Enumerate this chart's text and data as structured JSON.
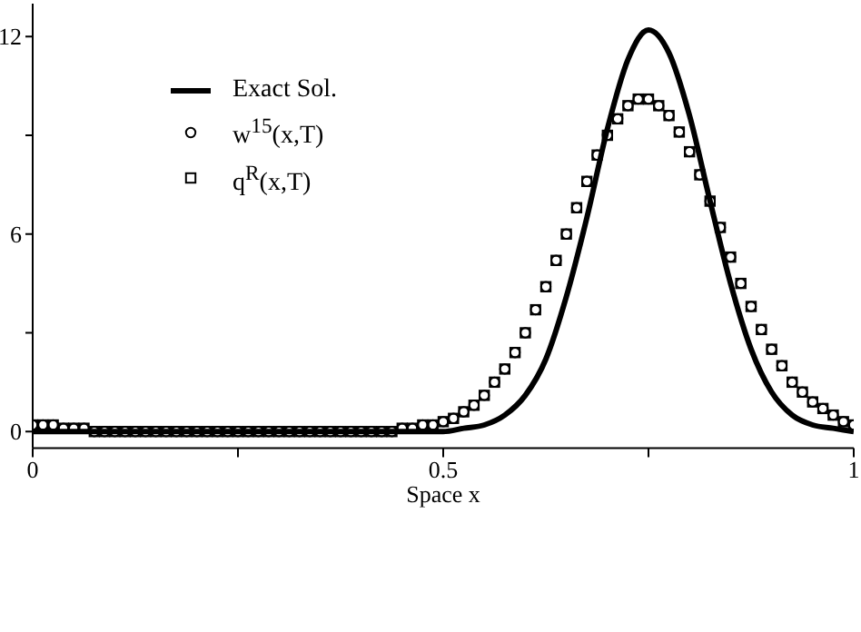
{
  "chart_data": {
    "type": "line",
    "xlabel": "Space x",
    "xlim": [
      0,
      1
    ],
    "xticks": [
      0,
      {
        "value": 0.25,
        "label": null
      },
      0.5,
      {
        "value": 0.75,
        "label": null
      },
      1
    ],
    "ylim": [
      -0.5,
      13
    ],
    "yticks": [
      0,
      {
        "value": 3,
        "label": null
      },
      6,
      {
        "value": 9,
        "label": null
      },
      12
    ],
    "grid": false,
    "legend": "top left",
    "series": [
      {
        "name": "Exact Sol.",
        "color": "#000000",
        "line_style": "solid",
        "marker": "none",
        "x": [
          0,
          0.025,
          0.05,
          0.075,
          0.1,
          0.125,
          0.15,
          0.175,
          0.2,
          0.225,
          0.25,
          0.275,
          0.3,
          0.325,
          0.35,
          0.375,
          0.4,
          0.425,
          0.45,
          0.475,
          0.5,
          0.525,
          0.55,
          0.575,
          0.6,
          0.625,
          0.65,
          0.675,
          0.7,
          0.725,
          0.75,
          0.775,
          0.8,
          0.825,
          0.85,
          0.875,
          0.9,
          0.925,
          0.95,
          0.975,
          1
        ],
        "values": [
          0,
          0,
          0,
          0,
          0,
          0,
          0,
          0,
          0,
          0,
          0,
          0,
          0,
          0,
          0,
          0,
          0,
          0,
          0,
          0,
          0,
          0.1,
          0.2,
          0.5,
          1.1,
          2.2,
          4.1,
          6.5,
          9.2,
          11.3,
          12.2,
          11.5,
          9.6,
          7,
          4.5,
          2.5,
          1.2,
          0.5,
          0.2,
          0.1,
          0
        ]
      },
      {
        "name": "w$^{15}$(x,T)",
        "type": "scatter",
        "color": "#000000",
        "marker": "circle",
        "x": [
          0,
          0.0125,
          0.025,
          0.0375,
          0.05,
          0.0625,
          0.075,
          0.0875,
          0.1,
          0.1125,
          0.125,
          0.1375,
          0.15,
          0.1625,
          0.175,
          0.1875,
          0.2,
          0.2125,
          0.225,
          0.2375,
          0.25,
          0.2625,
          0.275,
          0.2875,
          0.3,
          0.3125,
          0.325,
          0.3375,
          0.35,
          0.3625,
          0.375,
          0.3875,
          0.4,
          0.4125,
          0.425,
          0.4375,
          0.45,
          0.4625,
          0.475,
          0.4875,
          0.5,
          0.5125,
          0.525,
          0.5375,
          0.55,
          0.5625,
          0.575,
          0.5875,
          0.6,
          0.6125,
          0.625,
          0.6375,
          0.65,
          0.6625,
          0.675,
          0.6875,
          0.7,
          0.7125,
          0.725,
          0.7375,
          0.75,
          0.7625,
          0.775,
          0.7875,
          0.8,
          0.8125,
          0.825,
          0.8375,
          0.85,
          0.8625,
          0.875,
          0.8875,
          0.9,
          0.9125,
          0.925,
          0.9375,
          0.95,
          0.9625,
          0.975,
          0.9875,
          1
        ],
        "values": [
          0.2,
          0.2,
          0.2,
          0.1,
          0.1,
          0.1,
          0,
          0,
          0,
          0,
          0,
          0,
          0,
          0,
          0,
          0,
          0,
          0,
          0,
          0,
          0,
          0,
          0,
          0,
          0,
          0,
          0,
          0,
          0,
          0,
          0,
          0,
          0,
          0,
          0,
          0,
          0.1,
          0.1,
          0.2,
          0.2,
          0.3,
          0.4,
          0.6,
          0.8,
          1.1,
          1.5,
          1.9,
          2.4,
          3,
          3.7,
          4.4,
          5.2,
          6,
          6.8,
          7.6,
          8.4,
          9,
          9.5,
          9.9,
          10.1,
          10.1,
          9.9,
          9.6,
          9.1,
          8.5,
          7.8,
          7,
          6.2,
          5.3,
          4.5,
          3.8,
          3.1,
          2.5,
          2,
          1.5,
          1.2,
          0.9,
          0.7,
          0.5,
          0.3,
          0.2
        ]
      },
      {
        "name": "q$^{R}$(x,T)",
        "type": "scatter",
        "color": "#000000",
        "marker": "square",
        "x": [
          0,
          0.0125,
          0.025,
          0.0375,
          0.05,
          0.0625,
          0.075,
          0.0875,
          0.1,
          0.1125,
          0.125,
          0.1375,
          0.15,
          0.1625,
          0.175,
          0.1875,
          0.2,
          0.2125,
          0.225,
          0.2375,
          0.25,
          0.2625,
          0.275,
          0.2875,
          0.3,
          0.3125,
          0.325,
          0.3375,
          0.35,
          0.3625,
          0.375,
          0.3875,
          0.4,
          0.4125,
          0.425,
          0.4375,
          0.45,
          0.4625,
          0.475,
          0.4875,
          0.5,
          0.5125,
          0.525,
          0.5375,
          0.55,
          0.5625,
          0.575,
          0.5875,
          0.6,
          0.6125,
          0.625,
          0.6375,
          0.65,
          0.6625,
          0.675,
          0.6875,
          0.7,
          0.7125,
          0.725,
          0.7375,
          0.75,
          0.7625,
          0.775,
          0.7875,
          0.8,
          0.8125,
          0.825,
          0.8375,
          0.85,
          0.8625,
          0.875,
          0.8875,
          0.9,
          0.9125,
          0.925,
          0.9375,
          0.95,
          0.9625,
          0.975,
          0.9875,
          1
        ],
        "values": [
          0.2,
          0.2,
          0.2,
          0.1,
          0.1,
          0.1,
          0,
          0,
          0,
          0,
          0,
          0,
          0,
          0,
          0,
          0,
          0,
          0,
          0,
          0,
          0,
          0,
          0,
          0,
          0,
          0,
          0,
          0,
          0,
          0,
          0,
          0,
          0,
          0,
          0,
          0,
          0.1,
          0.1,
          0.2,
          0.2,
          0.3,
          0.4,
          0.6,
          0.8,
          1.1,
          1.5,
          1.9,
          2.4,
          3,
          3.7,
          4.4,
          5.2,
          6,
          6.8,
          7.6,
          8.4,
          9,
          9.5,
          9.9,
          10.1,
          10.1,
          9.9,
          9.6,
          9.1,
          8.5,
          7.8,
          7,
          6.2,
          5.3,
          4.5,
          3.8,
          3.1,
          2.5,
          2,
          1.5,
          1.2,
          0.9,
          0.7,
          0.5,
          0.3,
          0.2
        ]
      }
    ]
  }
}
